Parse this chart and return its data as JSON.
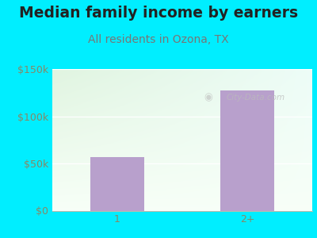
{
  "title": "Median family income by earners",
  "subtitle": "All residents in Ozona, TX",
  "categories": [
    "1",
    "2+"
  ],
  "values": [
    57000,
    127000
  ],
  "bar_color": "#b8a0cc",
  "outer_bg": "#00eeff",
  "title_color": "#222222",
  "subtitle_color": "#777777",
  "tick_label_color": "#888866",
  "ylim": [
    0,
    150000
  ],
  "yticks": [
    0,
    50000,
    100000,
    150000
  ],
  "ytick_labels": [
    "$0",
    "$50k",
    "$100k",
    "$150k"
  ],
  "watermark": "City-Data.com",
  "title_fontsize": 13.5,
  "subtitle_fontsize": 10,
  "tick_fontsize": 9,
  "bg_color_topleft": "#d8f0d8",
  "bg_color_bottomright": "#f8fff8"
}
